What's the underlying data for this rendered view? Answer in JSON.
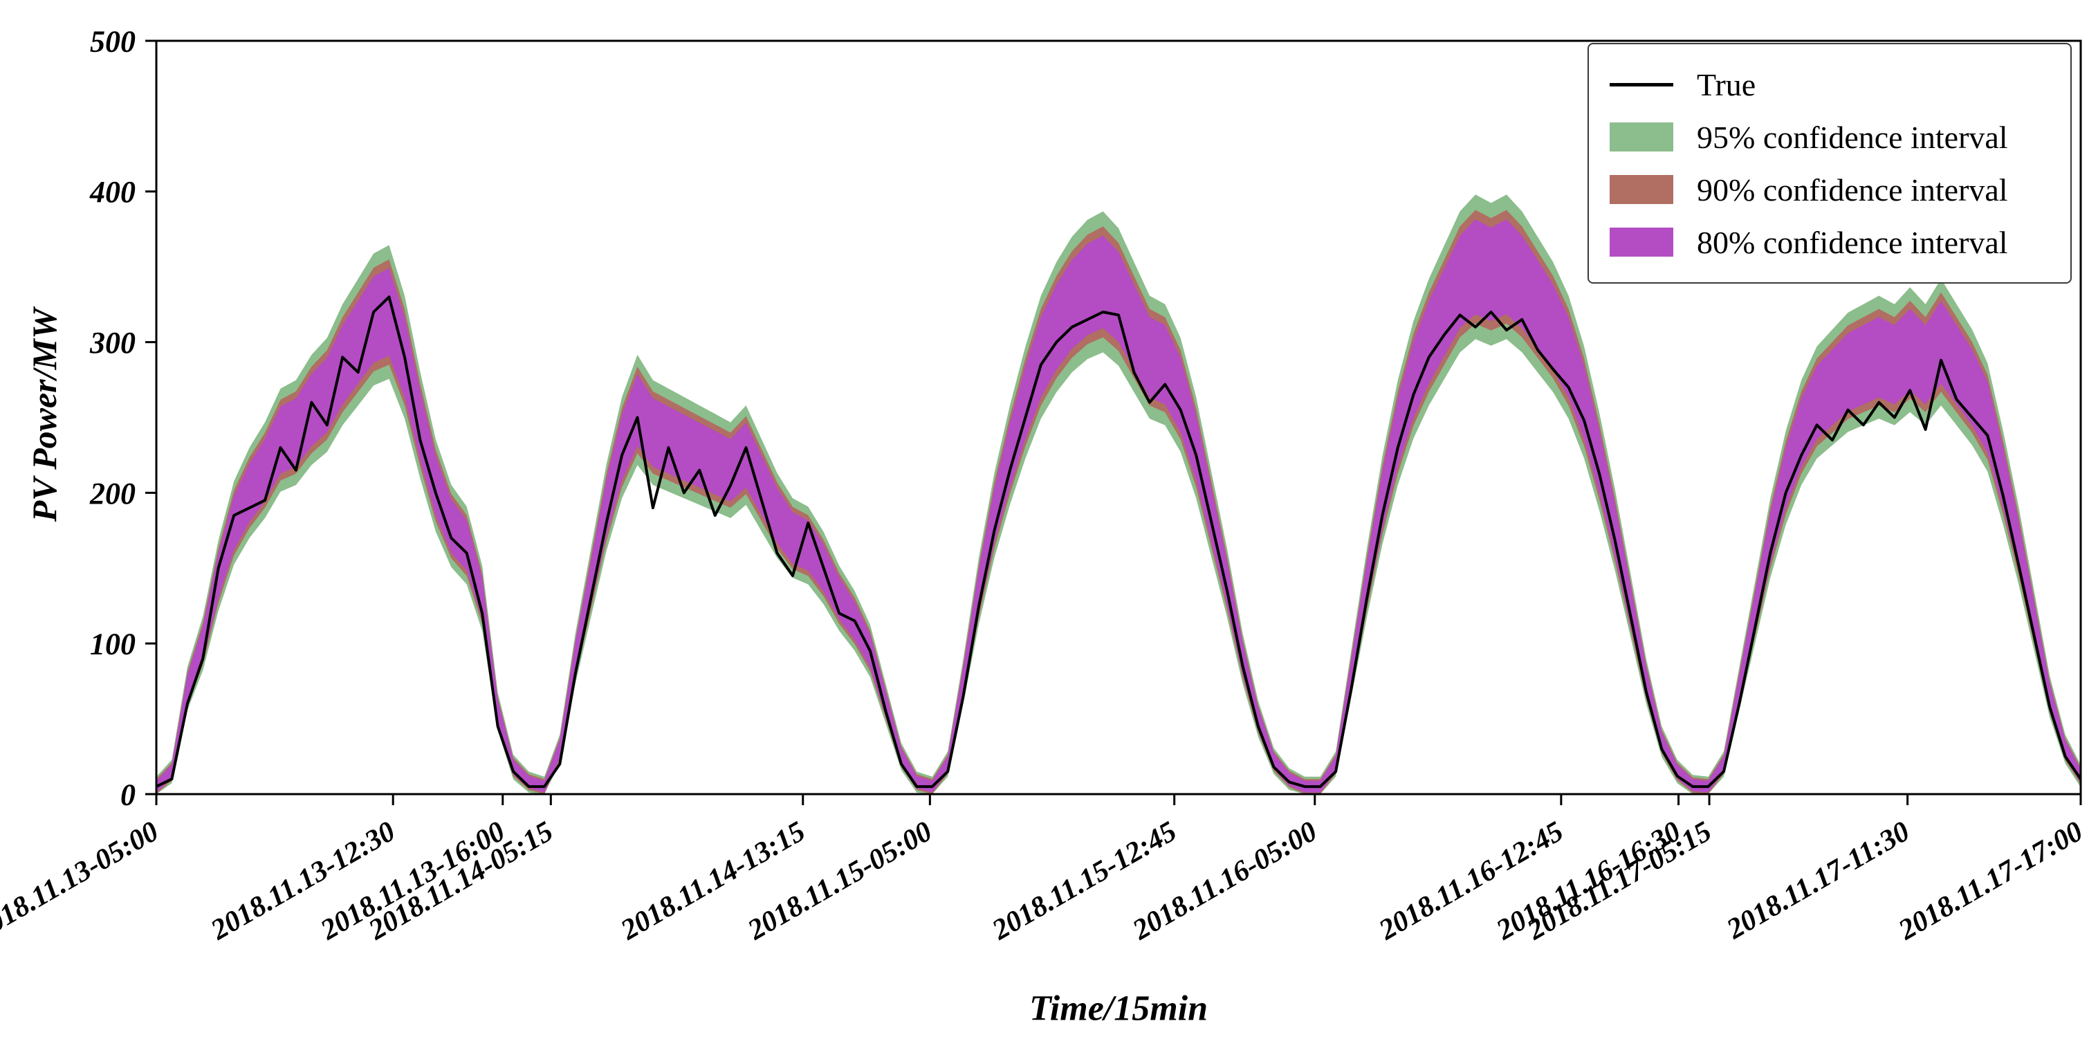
{
  "figure": {
    "background": "#ffffff"
  },
  "chart_data": {
    "type": "area",
    "title": "",
    "xlabel": "Time/15min",
    "ylabel": "PV Power/MW",
    "ylim": [
      0,
      500
    ],
    "grid": false,
    "y_ticks": [
      0,
      100,
      200,
      300,
      400,
      500
    ],
    "x_ticks": [
      {
        "label": "2018.11.13-05:00",
        "pos": 0.0
      },
      {
        "label": "2018.11.13-12:30",
        "pos": 0.123
      },
      {
        "label": "2018.11.13-16:00",
        "pos": 0.18
      },
      {
        "label": "2018.11.14-05:15",
        "pos": 0.205
      },
      {
        "label": "2018.11.14-13:15",
        "pos": 0.336
      },
      {
        "label": "2018.11.15-05:00",
        "pos": 0.402
      },
      {
        "label": "2018.11.15-12:45",
        "pos": 0.529
      },
      {
        "label": "2018.11.16-05:00",
        "pos": 0.602
      },
      {
        "label": "2018.11.16-12:45",
        "pos": 0.73
      },
      {
        "label": "2018.11.16-16:30",
        "pos": 0.791
      },
      {
        "label": "2018.11.17-05:15",
        "pos": 0.807
      },
      {
        "label": "2018.11.17-11:30",
        "pos": 0.91
      },
      {
        "label": "2018.11.17-17:00",
        "pos": 1.0
      }
    ],
    "n_points": 125,
    "true_series": {
      "name": "True",
      "color": "#000000",
      "values": [
        5,
        10,
        60,
        90,
        150,
        185,
        190,
        195,
        230,
        215,
        260,
        245,
        290,
        280,
        320,
        330,
        290,
        235,
        200,
        170,
        160,
        120,
        45,
        15,
        5,
        5,
        20,
        80,
        130,
        180,
        225,
        250,
        190,
        230,
        200,
        215,
        185,
        205,
        230,
        195,
        160,
        145,
        180,
        150,
        120,
        115,
        95,
        55,
        20,
        5,
        5,
        15,
        65,
        125,
        175,
        215,
        250,
        285,
        300,
        310,
        315,
        320,
        318,
        280,
        260,
        272,
        255,
        225,
        180,
        135,
        85,
        45,
        18,
        8,
        5,
        5,
        15,
        70,
        130,
        185,
        230,
        265,
        290,
        305,
        318,
        310,
        320,
        308,
        315,
        295,
        282,
        270,
        248,
        212,
        168,
        118,
        68,
        30,
        12,
        5,
        5,
        15,
        60,
        110,
        160,
        200,
        225,
        245,
        235,
        255,
        245,
        260,
        250,
        268,
        242,
        288,
        262,
        250,
        238,
        198,
        152,
        105,
        58,
        25,
        10
      ]
    },
    "prediction_center": [
      5,
      15,
      70,
      100,
      145,
      180,
      200,
      215,
      235,
      240,
      255,
      265,
      285,
      300,
      315,
      320,
      290,
      245,
      205,
      178,
      165,
      130,
      55,
      18,
      8,
      5,
      30,
      90,
      140,
      190,
      230,
      255,
      240,
      235,
      230,
      225,
      220,
      215,
      225,
      205,
      185,
      170,
      165,
      150,
      130,
      115,
      95,
      60,
      25,
      8,
      5,
      20,
      75,
      135,
      185,
      225,
      260,
      290,
      310,
      325,
      335,
      340,
      330,
      310,
      290,
      285,
      265,
      230,
      185,
      140,
      90,
      50,
      22,
      10,
      5,
      5,
      20,
      80,
      140,
      195,
      240,
      275,
      300,
      320,
      340,
      350,
      345,
      350,
      340,
      325,
      310,
      290,
      260,
      220,
      175,
      125,
      75,
      35,
      15,
      6,
      5,
      20,
      70,
      120,
      170,
      210,
      240,
      260,
      270,
      280,
      285,
      290,
      285,
      295,
      285,
      300,
      285,
      270,
      250,
      210,
      165,
      115,
      65,
      30,
      12
    ],
    "bands": [
      {
        "name": "95% confidence interval",
        "color": "#8cbd8c",
        "half_width_scale": 0.12,
        "half_width_base": 6
      },
      {
        "name": "90% confidence interval",
        "color": "#b06f62",
        "half_width_scale": 0.095,
        "half_width_base": 4.5
      },
      {
        "name": "80% confidence interval",
        "color": "#b44cc4",
        "half_width_scale": 0.08,
        "half_width_base": 3.5
      }
    ],
    "legend": {
      "position": "upper right",
      "entries": [
        "True",
        "95% confidence interval",
        "90% confidence interval",
        "80% confidence interval"
      ]
    }
  }
}
